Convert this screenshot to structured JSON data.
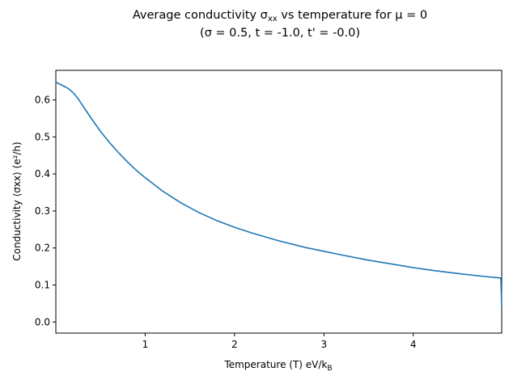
{
  "chart_data": {
    "type": "line",
    "title_line1": "Average conductivity σ",
    "title_line1_sub": "xx",
    "title_line1_rest": " vs temperature for μ = 0",
    "title_line2": "(σ = 0.5, t = -1.0, t' = -0.0)",
    "xlabel": "Temperature (T) eV/k",
    "xlabel_sub": "B",
    "ylabel": "Conductivity ⟨σxx⟩ (e²/h)",
    "xlim": [
      0.0,
      4.99
    ],
    "ylim": [
      -0.03,
      0.68
    ],
    "xticks": [
      1,
      2,
      3,
      4
    ],
    "xtick_labels": [
      "1",
      "2",
      "3",
      "4"
    ],
    "yticks": [
      0.0,
      0.1,
      0.2,
      0.3,
      0.4,
      0.5,
      0.6
    ],
    "ytick_labels": [
      "0.0",
      "0.1",
      "0.2",
      "0.3",
      "0.4",
      "0.5",
      "0.6"
    ],
    "grid": false,
    "series": [
      {
        "color": "#1f77b4",
        "x": [
          0.0,
          0.05,
          0.1,
          0.15,
          0.2,
          0.25,
          0.3,
          0.4,
          0.5,
          0.6,
          0.7,
          0.8,
          0.9,
          1.0,
          1.2,
          1.4,
          1.6,
          1.8,
          2.0,
          2.2,
          2.5,
          2.8,
          3.0,
          3.2,
          3.5,
          3.8,
          4.0,
          4.2,
          4.5,
          4.8,
          4.98,
          4.99
        ],
        "y": [
          0.648,
          0.642,
          0.636,
          0.629,
          0.618,
          0.603,
          0.585,
          0.549,
          0.515,
          0.485,
          0.458,
          0.433,
          0.41,
          0.39,
          0.353,
          0.322,
          0.296,
          0.274,
          0.256,
          0.24,
          0.219,
          0.201,
          0.191,
          0.181,
          0.167,
          0.155,
          0.147,
          0.14,
          0.131,
          0.123,
          0.119,
          0.04
        ]
      }
    ]
  }
}
